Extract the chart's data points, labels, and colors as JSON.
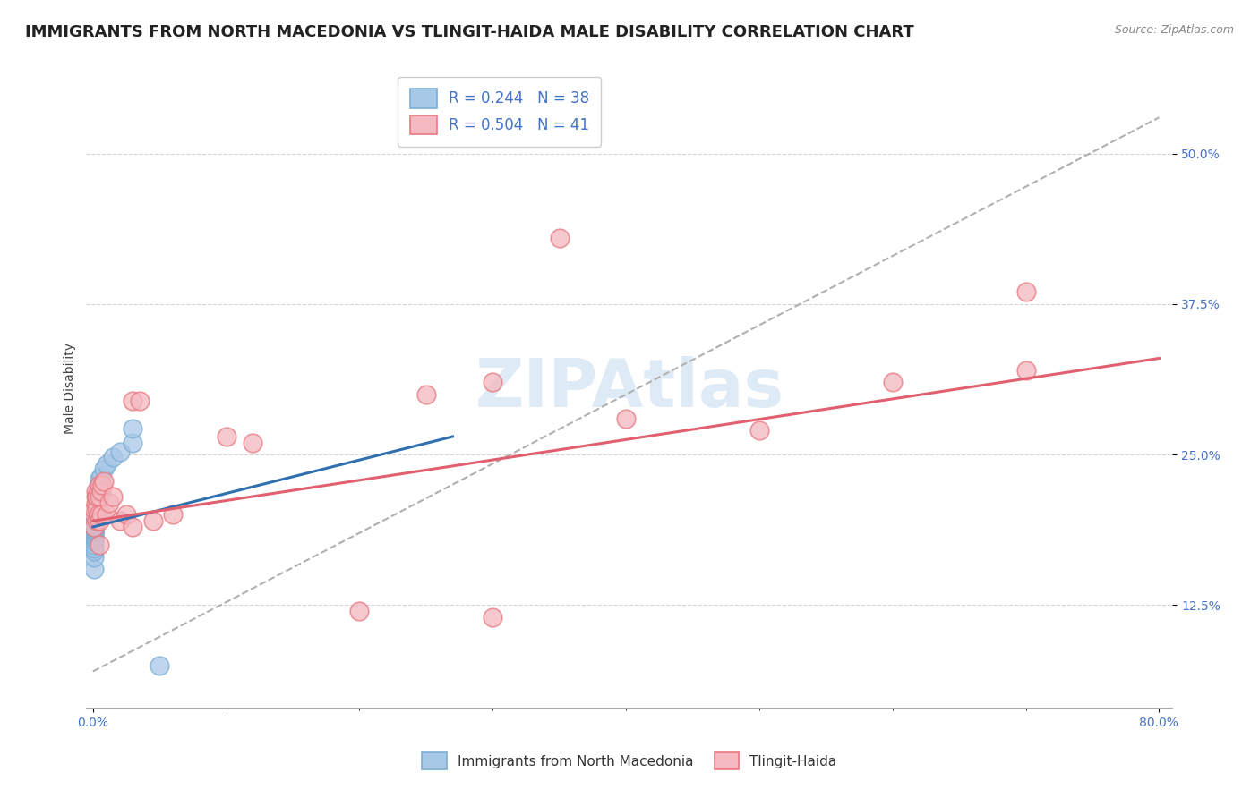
{
  "title": "IMMIGRANTS FROM NORTH MACEDONIA VS TLINGIT-HAIDA MALE DISABILITY CORRELATION CHART",
  "source": "Source: ZipAtlas.com",
  "ylabel": "Male Disability",
  "watermark": "ZIPAtlas",
  "legend_blue_r": "R = 0.244",
  "legend_blue_n": "N = 38",
  "legend_pink_r": "R = 0.504",
  "legend_pink_n": "N = 41",
  "xlim": [
    0.0,
    0.8
  ],
  "ylim": [
    0.04,
    0.55
  ],
  "yticks": [
    0.125,
    0.25,
    0.375,
    0.5
  ],
  "xticks": [
    0.0,
    0.8
  ],
  "blue_scatter_color": "#a8c8e8",
  "blue_edge_color": "#7bafd4",
  "pink_scatter_color": "#f4b8c0",
  "pink_edge_color": "#e87880",
  "blue_line_color": "#3070b0",
  "pink_line_color": "#e06070",
  "dash_line_color": "#b0b0b0",
  "blue_legend_color": "#a8c8e8",
  "blue_legend_edge": "#7bafd4",
  "pink_legend_color": "#f4b8c0",
  "pink_legend_edge": "#e87880",
  "blue_points": [
    [
      0.001,
      0.155
    ],
    [
      0.001,
      0.165
    ],
    [
      0.001,
      0.17
    ],
    [
      0.001,
      0.172
    ],
    [
      0.001,
      0.175
    ],
    [
      0.001,
      0.178
    ],
    [
      0.001,
      0.18
    ],
    [
      0.001,
      0.182
    ],
    [
      0.001,
      0.183
    ],
    [
      0.001,
      0.185
    ],
    [
      0.001,
      0.186
    ],
    [
      0.001,
      0.187
    ],
    [
      0.001,
      0.188
    ],
    [
      0.001,
      0.189
    ],
    [
      0.001,
      0.19
    ],
    [
      0.001,
      0.191
    ],
    [
      0.001,
      0.192
    ],
    [
      0.001,
      0.193
    ],
    [
      0.001,
      0.194
    ],
    [
      0.001,
      0.195
    ],
    [
      0.002,
      0.196
    ],
    [
      0.002,
      0.197
    ],
    [
      0.002,
      0.198
    ],
    [
      0.002,
      0.199
    ],
    [
      0.002,
      0.2
    ],
    [
      0.003,
      0.21
    ],
    [
      0.003,
      0.215
    ],
    [
      0.004,
      0.22
    ],
    [
      0.004,
      0.225
    ],
    [
      0.005,
      0.23
    ],
    [
      0.006,
      0.232
    ],
    [
      0.008,
      0.238
    ],
    [
      0.01,
      0.242
    ],
    [
      0.015,
      0.248
    ],
    [
      0.02,
      0.252
    ],
    [
      0.03,
      0.26
    ],
    [
      0.03,
      0.272
    ],
    [
      0.05,
      0.075
    ]
  ],
  "pink_points": [
    [
      0.001,
      0.19
    ],
    [
      0.001,
      0.2
    ],
    [
      0.001,
      0.205
    ],
    [
      0.002,
      0.21
    ],
    [
      0.002,
      0.215
    ],
    [
      0.002,
      0.22
    ],
    [
      0.003,
      0.205
    ],
    [
      0.003,
      0.215
    ],
    [
      0.003,
      0.195
    ],
    [
      0.004,
      0.2
    ],
    [
      0.004,
      0.22
    ],
    [
      0.005,
      0.215
    ],
    [
      0.005,
      0.225
    ],
    [
      0.005,
      0.195
    ],
    [
      0.005,
      0.175
    ],
    [
      0.006,
      0.22
    ],
    [
      0.006,
      0.2
    ],
    [
      0.007,
      0.225
    ],
    [
      0.008,
      0.228
    ],
    [
      0.01,
      0.2
    ],
    [
      0.012,
      0.21
    ],
    [
      0.015,
      0.215
    ],
    [
      0.02,
      0.195
    ],
    [
      0.025,
      0.2
    ],
    [
      0.03,
      0.19
    ],
    [
      0.045,
      0.195
    ],
    [
      0.06,
      0.2
    ],
    [
      0.03,
      0.295
    ],
    [
      0.035,
      0.295
    ],
    [
      0.1,
      0.265
    ],
    [
      0.12,
      0.26
    ],
    [
      0.25,
      0.3
    ],
    [
      0.3,
      0.31
    ],
    [
      0.4,
      0.28
    ],
    [
      0.5,
      0.27
    ],
    [
      0.6,
      0.31
    ],
    [
      0.7,
      0.32
    ],
    [
      0.7,
      0.385
    ],
    [
      0.3,
      0.115
    ],
    [
      0.2,
      0.12
    ],
    [
      0.35,
      0.43
    ]
  ],
  "background_color": "#ffffff",
  "grid_color": "#d0d0d0",
  "title_fontsize": 13,
  "axis_label_fontsize": 10,
  "tick_fontsize": 10,
  "legend_fontsize": 12
}
